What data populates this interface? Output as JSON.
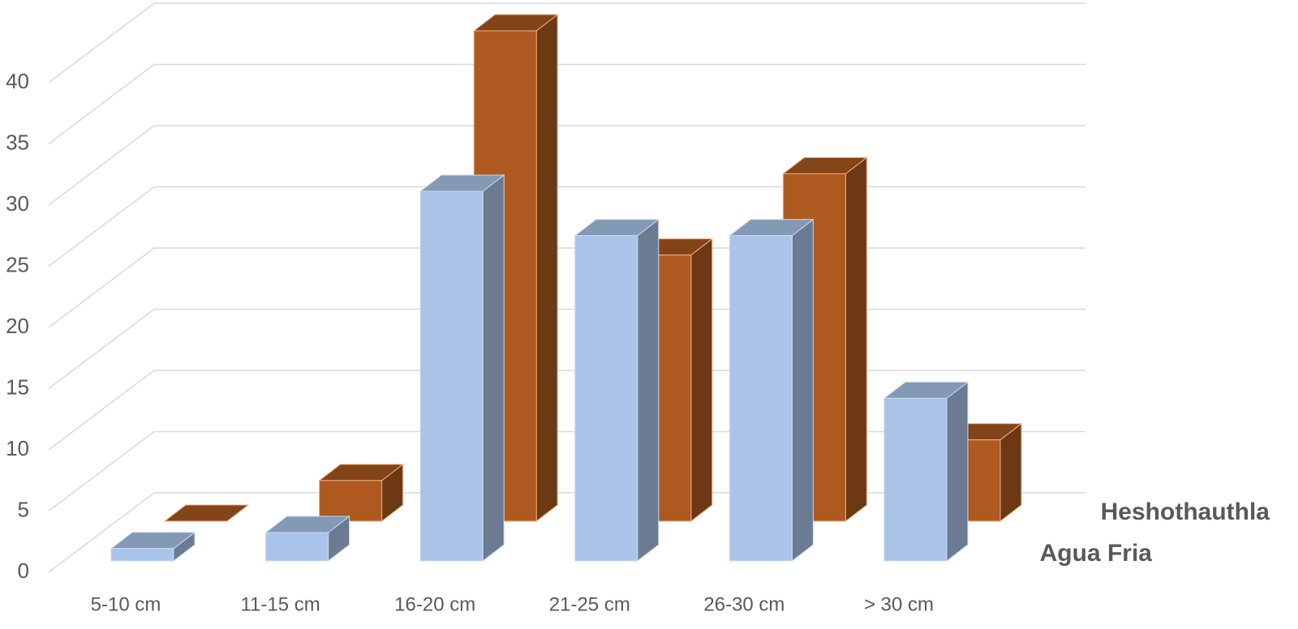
{
  "chart_data": {
    "type": "bar3d",
    "categories": [
      "5-10 cm",
      "11-15 cm",
      "16-20 cm",
      "21-25 cm",
      "26-30 cm",
      "> 30 cm"
    ],
    "series": [
      {
        "name": "Agua Fria",
        "color": "#a9c4e8",
        "values": [
          1,
          2.3,
          30,
          26.4,
          26.4,
          13.2
        ]
      },
      {
        "name": "Heshothauthla",
        "color": "#ad591f",
        "values": [
          0,
          3.3,
          39.8,
          21.6,
          28.2,
          6.6
        ]
      }
    ],
    "ylim": [
      0,
      40
    ],
    "yticks": [
      0,
      5,
      10,
      15,
      20,
      25,
      30,
      35,
      40
    ],
    "grid": true
  }
}
